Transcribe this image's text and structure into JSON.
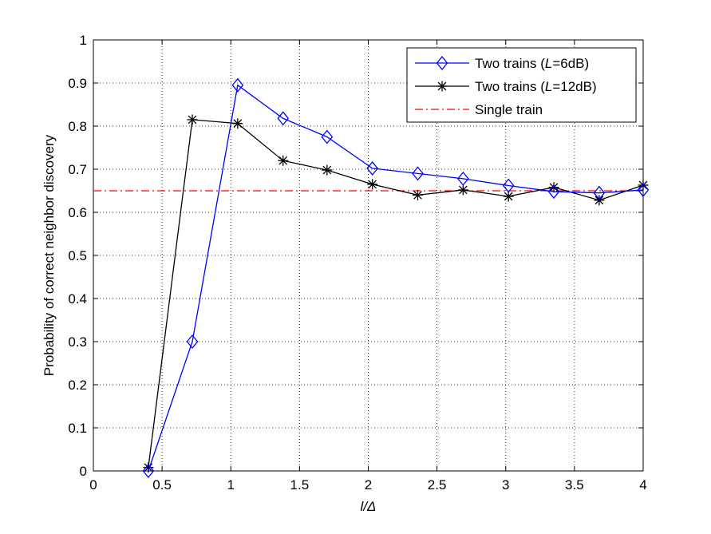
{
  "chart_data": {
    "type": "line",
    "title": "",
    "xlabel": "l/Δ",
    "ylabel": "Probability of correct neighbor discovery",
    "xlim": [
      0,
      4
    ],
    "ylim": [
      0,
      1
    ],
    "x_ticks": [
      0,
      0.5,
      1,
      1.5,
      2,
      2.5,
      3,
      3.5,
      4
    ],
    "x_tick_labels": [
      "0",
      "0.5",
      "1",
      "1.5",
      "2",
      "2.5",
      "3",
      "3.5",
      "4"
    ],
    "y_ticks": [
      0,
      0.1,
      0.2,
      0.3,
      0.4,
      0.5,
      0.6,
      0.7,
      0.8,
      0.9,
      1
    ],
    "y_tick_labels": [
      "0",
      "0.1",
      "0.2",
      "0.3",
      "0.4",
      "0.5",
      "0.6",
      "0.7",
      "0.8",
      "0.9",
      "1"
    ],
    "grid": true,
    "legend_position": "top-right",
    "series": [
      {
        "name": "Two trains (L=6dB)",
        "label_prefix": "Two trains (",
        "label_italic": "L",
        "label_suffix": "=6dB)",
        "color": "#0000ff",
        "marker": "diamond",
        "style": "solid",
        "x": [
          0.4,
          0.72,
          1.05,
          1.38,
          1.7,
          2.03,
          2.36,
          2.69,
          3.02,
          3.35,
          3.68,
          4.0
        ],
        "y": [
          0.0,
          0.3,
          0.895,
          0.818,
          0.775,
          0.702,
          0.69,
          0.678,
          0.662,
          0.648,
          0.645,
          0.652
        ]
      },
      {
        "name": "Two trains (L=12dB)",
        "label_prefix": "Two trains (",
        "label_italic": "L",
        "label_suffix": "=12dB)",
        "color": "#000000",
        "marker": "asterisk",
        "style": "solid",
        "x": [
          0.4,
          0.72,
          1.05,
          1.38,
          1.7,
          2.03,
          2.36,
          2.69,
          3.02,
          3.35,
          3.68,
          4.0
        ],
        "y": [
          0.008,
          0.815,
          0.806,
          0.72,
          0.698,
          0.665,
          0.64,
          0.652,
          0.637,
          0.658,
          0.628,
          0.663
        ]
      },
      {
        "name": "Single train",
        "label_prefix": "Single train",
        "label_italic": "",
        "label_suffix": "",
        "color": "#ff0000",
        "marker": "none",
        "style": "dash-dot",
        "x": [
          0,
          4
        ],
        "y": [
          0.65,
          0.65
        ]
      }
    ]
  }
}
